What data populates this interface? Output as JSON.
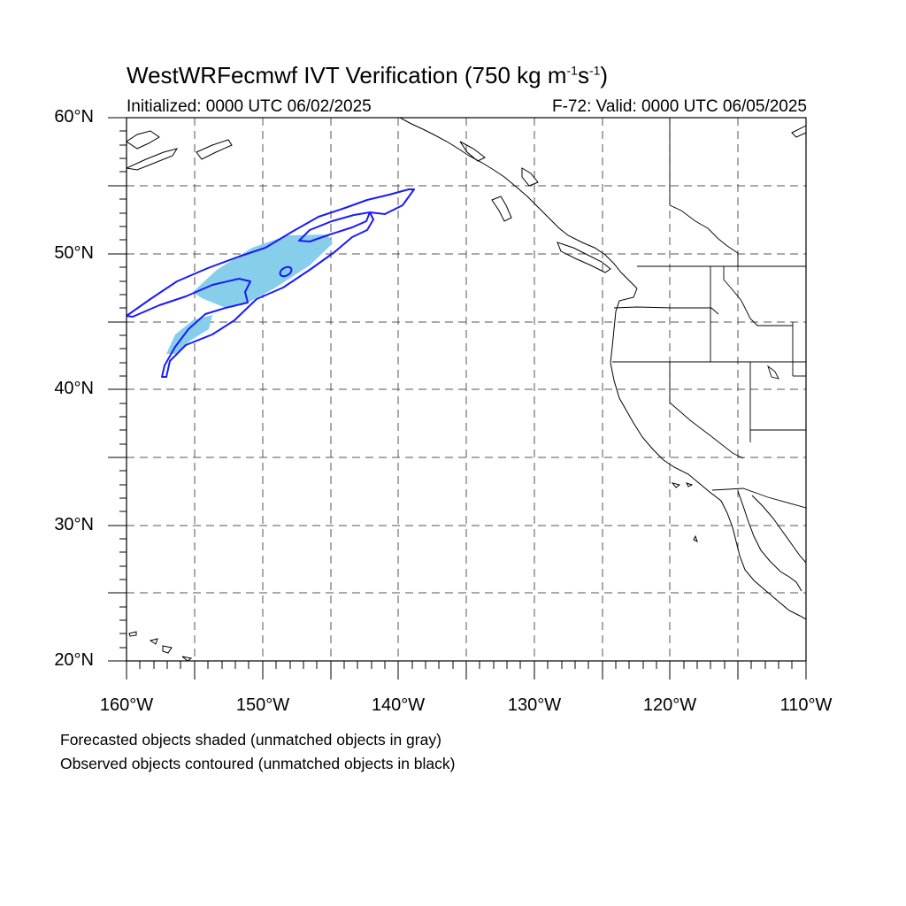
{
  "title": {
    "main": "WestWRFecmwf IVT Verification (750 kg m",
    "exp1": "-1",
    "mid": "s",
    "exp2": "-1",
    "end": ")"
  },
  "subtitle": {
    "initialized": "Initialized: 0000 UTC 06/02/2025",
    "valid": "F-72: Valid: 0000 UTC 06/05/2025"
  },
  "axes": {
    "lat_labels": [
      "60°N",
      "50°N",
      "40°N",
      "30°N",
      "20°N"
    ],
    "lon_labels": [
      "160°W",
      "150°W",
      "140°W",
      "130°W",
      "120°W",
      "110°W"
    ],
    "lat_range": [
      20,
      60
    ],
    "lon_range": [
      -160,
      -110
    ],
    "grid": "dashed, every 5 degrees"
  },
  "notes": {
    "line1": "Forecasted objects shaded (unmatched objects in gray)",
    "line2": "Observed objects contoured (unmatched objects in black)"
  },
  "colors": {
    "forecast_fill": "#87ceeb",
    "observed_contour": "#1a1aff",
    "coastline": "#000000",
    "grid": "#555555"
  }
}
